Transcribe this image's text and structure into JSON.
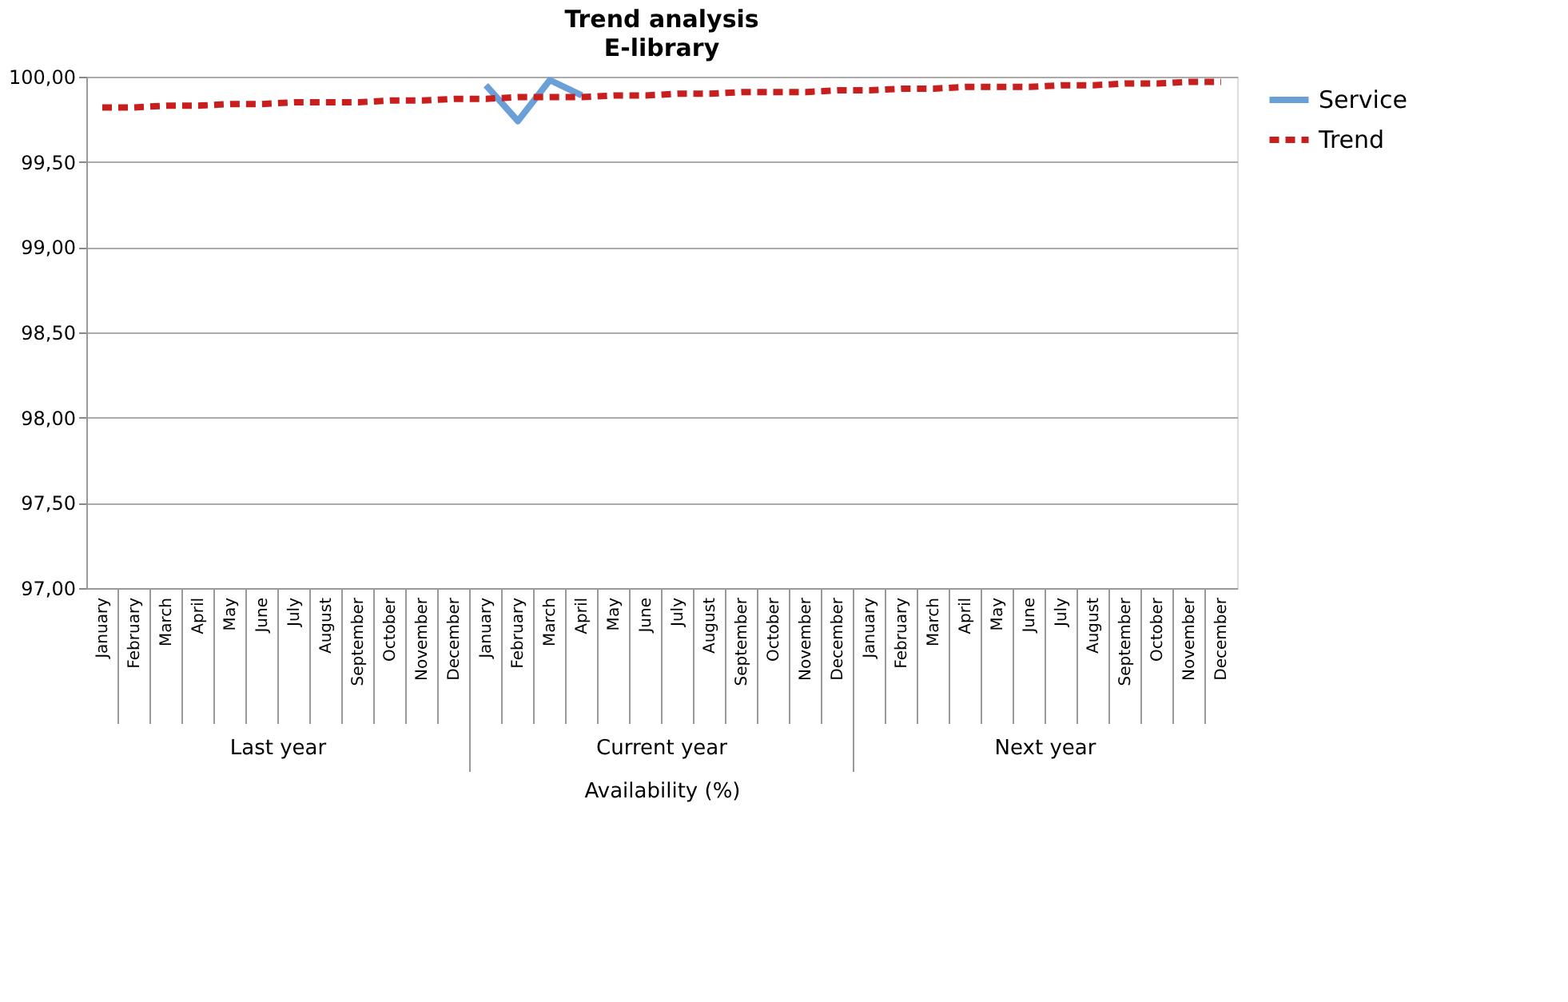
{
  "chart_data": {
    "type": "line",
    "title": "Trend analysis",
    "subtitle": "E-library",
    "xlabel": "Availability (%)",
    "categories": [
      "January",
      "February",
      "March",
      "April",
      "May",
      "June",
      "July",
      "August",
      "September",
      "October",
      "November",
      "December",
      "January",
      "February",
      "March",
      "April",
      "May",
      "June",
      "July",
      "August",
      "September",
      "October",
      "November",
      "December",
      "January",
      "February",
      "March",
      "April",
      "May",
      "June",
      "July",
      "August",
      "September",
      "October",
      "November",
      "December"
    ],
    "series": [
      {
        "name": "Service",
        "color": "#6a9fd8",
        "line_style": "solid",
        "values": [
          null,
          null,
          null,
          null,
          null,
          null,
          null,
          null,
          null,
          null,
          null,
          null,
          99.95,
          99.74,
          99.98,
          99.89,
          null,
          null,
          null,
          null,
          null,
          null,
          null,
          null,
          null,
          null,
          null,
          null,
          null,
          null,
          null,
          null,
          null,
          null,
          null,
          null
        ]
      },
      {
        "name": "Trend",
        "color": "#c81e1e",
        "line_style": "dashed",
        "values": [
          99.82,
          99.82,
          99.83,
          99.83,
          99.84,
          99.84,
          99.85,
          99.85,
          99.85,
          99.86,
          99.86,
          99.87,
          99.87,
          99.88,
          99.88,
          99.88,
          99.89,
          99.89,
          99.9,
          99.9,
          99.91,
          99.91,
          99.91,
          99.92,
          99.92,
          99.93,
          99.93,
          99.94,
          99.94,
          99.94,
          99.95,
          99.95,
          99.96,
          99.96,
          99.97,
          99.97
        ]
      }
    ],
    "annotations": [
      "Last year",
      "Current year",
      "Next year"
    ],
    "ylim": [
      97.0,
      100.0
    ],
    "yticks": [
      {
        "value": 97.0,
        "label": "97,00"
      },
      {
        "value": 97.5,
        "label": "97,50"
      },
      {
        "value": 98.0,
        "label": "98,00"
      },
      {
        "value": 98.5,
        "label": "98,50"
      },
      {
        "value": 99.0,
        "label": "99,00"
      },
      {
        "value": 99.5,
        "label": "99,50"
      },
      {
        "value": 100.0,
        "label": "100,00"
      }
    ],
    "grid": "y",
    "legend": "right",
    "marker": "none"
  }
}
